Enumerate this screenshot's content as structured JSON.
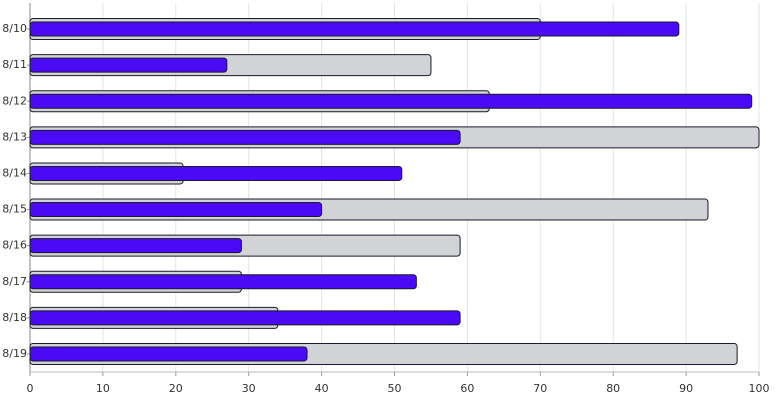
{
  "chart_data": {
    "type": "bar",
    "orientation": "horizontal",
    "categories": [
      "8/10",
      "8/11",
      "8/12",
      "8/13",
      "8/14",
      "8/15",
      "8/16",
      "8/17",
      "8/18",
      "8/19"
    ],
    "series": [
      {
        "color": "#d2d3d6",
        "values": [
          70,
          55,
          63,
          100,
          21,
          93,
          59,
          29,
          34,
          97
        ]
      },
      {
        "color": "#4a0af5",
        "values": [
          89,
          27,
          99,
          59,
          51,
          40,
          29,
          53,
          59,
          38
        ]
      }
    ],
    "xlim": [
      0,
      100
    ],
    "xticks": [
      0,
      10,
      20,
      30,
      40,
      50,
      60,
      70,
      80,
      90,
      100
    ],
    "grid": true
  }
}
